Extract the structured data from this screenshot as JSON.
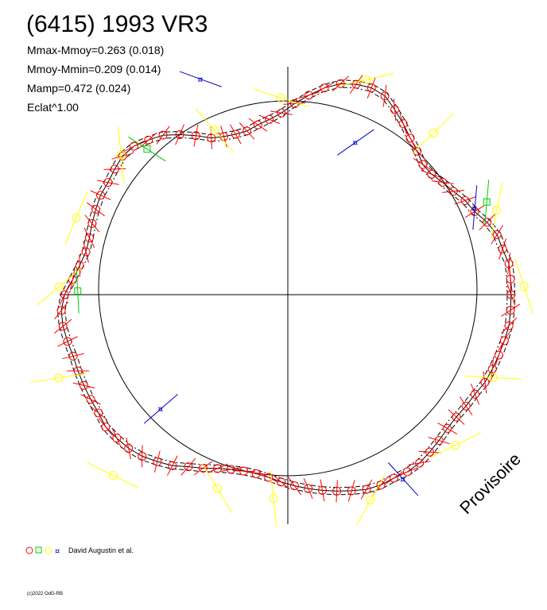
{
  "title": "(6415) 1993 VR3",
  "stats": {
    "line1": "Mmax-Mmoy=0.263 (0.018)",
    "line2": "Mmoy-Mmin=0.209 (0.014)",
    "line3": "Mamp=0.472 (0.024)",
    "line4": "Eclat^1.00"
  },
  "legend": {
    "label": "David Augustin et al."
  },
  "copyright": "(c)2022 OdG-RB",
  "stamp": "Provisoire",
  "colors": {
    "red": "#ff0000",
    "yellow": "#ffff00",
    "green": "#00cc00",
    "blue": "#0000cc",
    "axis": "#000000"
  },
  "chart_data": {
    "type": "scatter",
    "projection": "polar",
    "title": "(6415) 1993 VR3",
    "radius_reference": 1.0,
    "series": [
      {
        "marker": "circle",
        "color": "red",
        "points": [
          [
            0,
            1.19
          ],
          [
            4,
            1.19
          ],
          [
            8,
            1.19
          ],
          [
            12,
            1.17
          ],
          [
            16,
            1.16
          ],
          [
            20,
            1.13
          ],
          [
            24,
            1.09
          ],
          [
            28,
            1.07
          ],
          [
            32,
            1.04
          ],
          [
            36,
            1.02
          ],
          [
            40,
            1.0
          ],
          [
            44,
            1.0
          ],
          [
            48,
            1.03
          ],
          [
            52,
            1.06
          ],
          [
            56,
            1.1
          ],
          [
            60,
            1.14
          ],
          [
            64,
            1.18
          ],
          [
            68,
            1.19
          ],
          [
            72,
            1.18
          ],
          [
            76,
            1.16
          ],
          [
            80,
            1.12
          ],
          [
            84,
            1.07
          ],
          [
            88,
            1.02
          ],
          [
            92,
            0.97
          ],
          [
            96,
            0.94
          ],
          [
            100,
            0.92
          ],
          [
            104,
            0.9
          ],
          [
            108,
            0.9
          ],
          [
            112,
            0.91
          ],
          [
            116,
            0.93
          ],
          [
            120,
            0.98
          ],
          [
            124,
            1.03
          ],
          [
            128,
            1.08
          ],
          [
            132,
            1.11
          ],
          [
            136,
            1.14
          ],
          [
            140,
            1.15
          ],
          [
            144,
            1.14
          ],
          [
            148,
            1.13
          ],
          [
            152,
            1.13
          ],
          [
            156,
            1.12
          ],
          [
            160,
            1.11
          ],
          [
            164,
            1.1
          ],
          [
            168,
            1.1
          ],
          [
            172,
            1.12
          ],
          [
            176,
            1.15
          ],
          [
            180,
            1.19
          ],
          [
            184,
            1.21
          ],
          [
            188,
            1.21
          ],
          [
            192,
            1.2
          ],
          [
            196,
            1.19
          ],
          [
            200,
            1.19
          ],
          [
            204,
            1.19
          ],
          [
            208,
            1.19
          ],
          [
            212,
            1.19
          ],
          [
            216,
            1.2
          ],
          [
            220,
            1.19
          ],
          [
            224,
            1.18
          ],
          [
            228,
            1.16
          ],
          [
            232,
            1.13
          ],
          [
            236,
            1.1
          ],
          [
            240,
            1.06
          ],
          [
            244,
            1.03
          ],
          [
            248,
            1.0
          ],
          [
            252,
            0.98
          ],
          [
            256,
            0.97
          ],
          [
            260,
            0.97
          ],
          [
            264,
            0.98
          ],
          [
            268,
            1.0
          ],
          [
            272,
            1.02
          ],
          [
            276,
            1.04
          ],
          [
            280,
            1.06
          ],
          [
            284,
            1.08
          ],
          [
            288,
            1.1
          ],
          [
            292,
            1.12
          ],
          [
            296,
            1.13
          ],
          [
            300,
            1.13
          ],
          [
            304,
            1.14
          ],
          [
            308,
            1.14
          ],
          [
            312,
            1.13
          ],
          [
            316,
            1.12
          ],
          [
            320,
            1.11
          ],
          [
            324,
            1.11
          ],
          [
            328,
            1.12
          ],
          [
            332,
            1.13
          ],
          [
            336,
            1.15
          ],
          [
            340,
            1.16
          ],
          [
            344,
            1.17
          ],
          [
            348,
            1.18
          ],
          [
            352,
            1.19
          ],
          [
            356,
            1.19
          ]
        ]
      },
      {
        "marker": "circle",
        "color": "yellow",
        "points": [
          [
            2,
            1.26
          ],
          [
            22,
            1.2
          ],
          [
            48,
            1.16
          ],
          [
            70,
            1.22
          ],
          [
            92,
            1.05
          ],
          [
            114,
            0.96
          ],
          [
            140,
            1.16
          ],
          [
            160,
            1.2
          ],
          [
            178,
            1.22
          ],
          [
            200,
            1.3
          ],
          [
            226,
            1.34
          ],
          [
            250,
            1.1
          ],
          [
            266,
            1.09
          ],
          [
            292,
            1.18
          ],
          [
            318,
            1.2
          ],
          [
            338,
            1.18
          ]
        ]
      },
      {
        "marker": "square",
        "color": "green",
        "points": [
          [
            25,
            1.17
          ],
          [
            134,
            1.08
          ],
          [
            179,
            1.12
          ]
        ]
      },
      {
        "marker": "star",
        "color": "blue",
        "points": [
          [
            25,
            1.1
          ],
          [
            66,
            0.89
          ],
          [
            112,
            1.24
          ],
          [
            222,
            0.91
          ],
          [
            302,
            1.16
          ]
        ]
      }
    ],
    "curves": [
      {
        "name": "",
        "style": "solid"
      },
      {
        "name": "",
        "style": "dashed"
      },
      {
        "name": "",
        "style": "dash-dot"
      },
      {
        "name": "",
        "style": "reference-circle"
      }
    ]
  }
}
